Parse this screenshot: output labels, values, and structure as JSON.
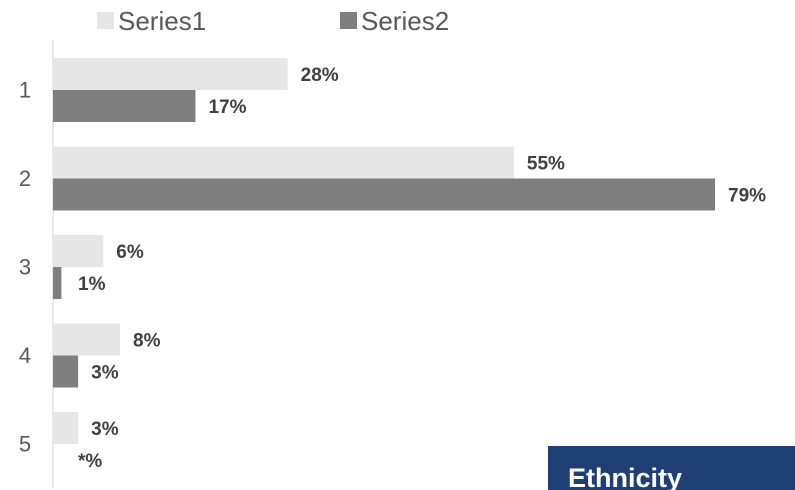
{
  "chart_data": {
    "type": "bar",
    "orientation": "horizontal",
    "categories": [
      "1",
      "2",
      "3",
      "4",
      "5"
    ],
    "series": [
      {
        "name": "Series1",
        "values": [
          28,
          55,
          6,
          8,
          3
        ],
        "labels": [
          "28%",
          "55%",
          "6%",
          "8%",
          "3%"
        ],
        "color": "#e6e6e6"
      },
      {
        "name": "Series2",
        "values": [
          17,
          79,
          1,
          3,
          0
        ],
        "labels": [
          "17%",
          "79%",
          "1%",
          "3%",
          "*%"
        ],
        "color": "#7f7f7f"
      }
    ],
    "xlim": [
      0,
      100
    ],
    "legend_position": "top-left",
    "grid": false,
    "tag": {
      "text": "Ethnicity",
      "color": "#1f3f74"
    }
  }
}
